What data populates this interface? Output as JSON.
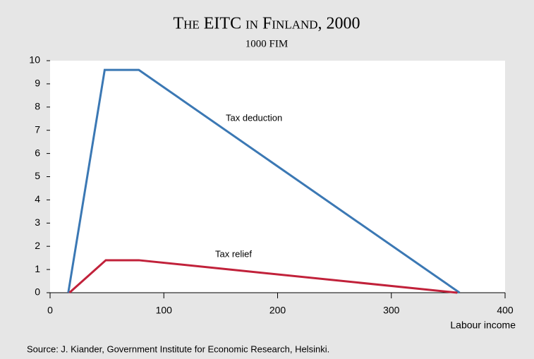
{
  "chart_data": {
    "type": "line",
    "title": "The EITC in Finland, 2000",
    "subtitle": "1000 FIM",
    "x_label": "Labour income",
    "source": "Source: J. Kiander, Government Institute for Economic Research, Helsinki.",
    "xlim": [
      0,
      400
    ],
    "xticks": [
      0,
      100,
      200,
      300,
      400
    ],
    "ylim": [
      0,
      10
    ],
    "yticks": [
      0,
      1,
      2,
      3,
      4,
      5,
      6,
      7,
      8,
      9,
      10
    ],
    "series": [
      {
        "name": "Tax deduction",
        "color": "#3b78b4",
        "x": [
          16,
          48,
          78,
          360
        ],
        "values": [
          0,
          9.6,
          9.6,
          0
        ]
      },
      {
        "name": "Tax relief",
        "color": "#c1213a",
        "x": [
          17,
          49,
          78,
          358
        ],
        "values": [
          0,
          1.4,
          1.4,
          0
        ]
      }
    ]
  }
}
